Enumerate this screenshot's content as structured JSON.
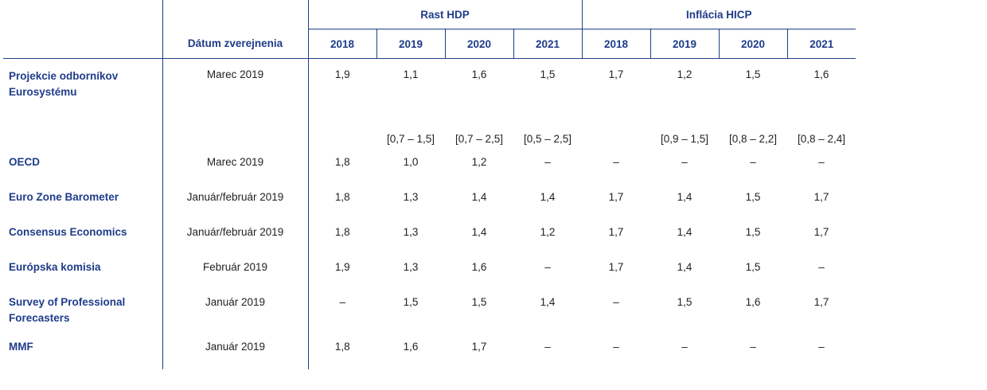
{
  "header": {
    "group_gdp": "Rast HDP",
    "group_inflation": "Inflácia HICP",
    "date_label": "Dátum zverejnenia",
    "years": [
      "2018",
      "2019",
      "2020",
      "2021"
    ]
  },
  "rows": [
    {
      "source": "Projekcie odborníkov Eurosystému",
      "date": "Marec 2019",
      "gdp": [
        "1,9",
        "1,1",
        "1,6",
        "1,5"
      ],
      "hicp": [
        "1,7",
        "1,2",
        "1,5",
        "1,6"
      ],
      "gdp_ranges": [
        "",
        "[0,7 – 1,5]",
        "[0,7 – 2,5]",
        "[0,5 – 2,5]"
      ],
      "hicp_ranges": [
        "",
        "[0,9 – 1,5]",
        "[0,8 – 2,2]",
        "[0,8 – 2,4]"
      ]
    },
    {
      "source": "OECD",
      "date": "Marec 2019",
      "gdp": [
        "1,8",
        "1,0",
        "1,2",
        "–"
      ],
      "hicp": [
        "–",
        "–",
        "–",
        "–"
      ]
    },
    {
      "source": "Euro Zone Barometer",
      "date": "Január/február 2019",
      "gdp": [
        "1,8",
        "1,3",
        "1,4",
        "1,4"
      ],
      "hicp": [
        "1,7",
        "1,4",
        "1,5",
        "1,7"
      ]
    },
    {
      "source": "Consensus Economics",
      "date": "Január/február 2019",
      "gdp": [
        "1,8",
        "1,3",
        "1,4",
        "1,2"
      ],
      "hicp": [
        "1,7",
        "1,4",
        "1,5",
        "1,7"
      ]
    },
    {
      "source": "Európska komisia",
      "date": "Február 2019",
      "gdp": [
        "1,9",
        "1,3",
        "1,6",
        "–"
      ],
      "hicp": [
        "1,7",
        "1,4",
        "1,5",
        "–"
      ]
    },
    {
      "source": "Survey of Professional Forecasters",
      "date": "Január 2019",
      "gdp": [
        "–",
        "1,5",
        "1,5",
        "1,4"
      ],
      "hicp": [
        "–",
        "1,5",
        "1,6",
        "1,7"
      ]
    },
    {
      "source": "MMF",
      "date": "Január 2019",
      "gdp": [
        "1,8",
        "1,6",
        "1,7",
        "–"
      ],
      "hicp": [
        "–",
        "–",
        "–",
        "–"
      ]
    }
  ]
}
